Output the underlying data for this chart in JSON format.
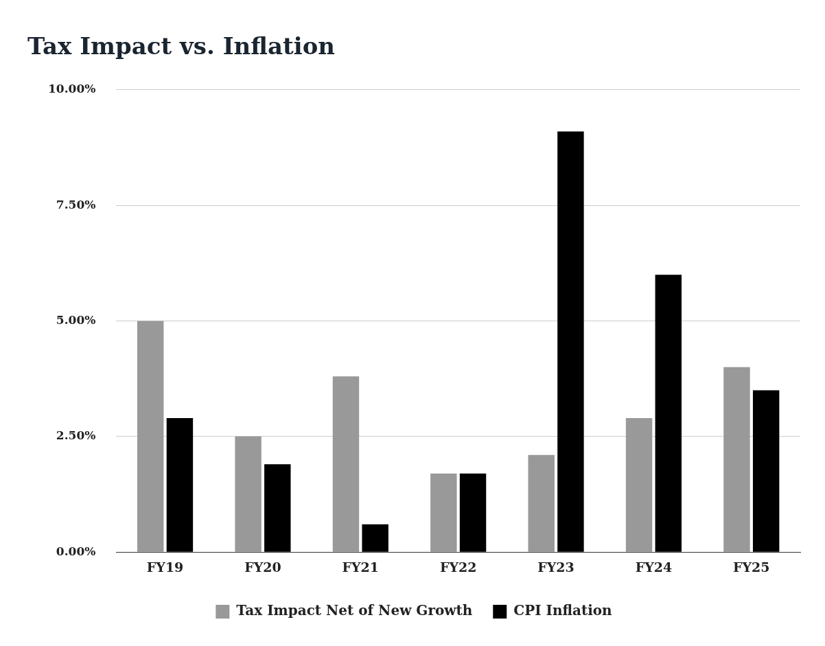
{
  "chart_data": {
    "type": "bar",
    "title": "Tax Impact vs. Inflation",
    "categories": [
      "FY19",
      "FY20",
      "FY21",
      "FY22",
      "FY23",
      "FY24",
      "FY25"
    ],
    "series": [
      {
        "name": "Tax Impact Net of New Growth",
        "color": "#999999",
        "values": [
          5.0,
          2.5,
          3.8,
          1.7,
          2.1,
          2.9,
          4.0
        ]
      },
      {
        "name": "CPI Inflation",
        "color": "#000000",
        "values": [
          2.9,
          1.9,
          0.6,
          1.7,
          9.1,
          6.0,
          3.5
        ]
      }
    ],
    "ylim": [
      0,
      10
    ],
    "yticks": [
      {
        "value": 0,
        "label": "0.00%"
      },
      {
        "value": 2.5,
        "label": "2.50%"
      },
      {
        "value": 5,
        "label": "5.00%"
      },
      {
        "value": 7.5,
        "label": "7.50%"
      },
      {
        "value": 10,
        "label": "10.00%"
      }
    ],
    "grid": "y",
    "legend": "bottom"
  }
}
